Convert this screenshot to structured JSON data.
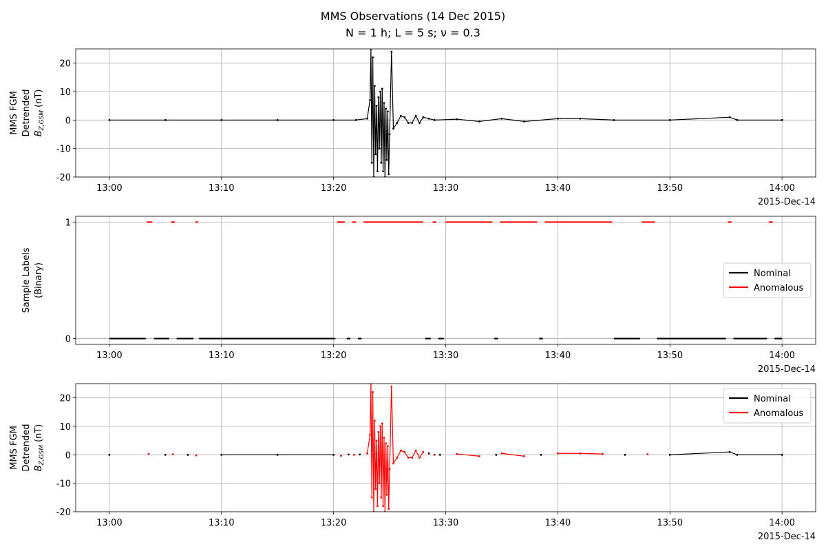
{
  "title": "MMS Observations (14 Dec 2015)",
  "subtitle": "N = 1 h; L = 5 s; ν = 0.3",
  "chart_data": [
    {
      "type": "line",
      "markers": true,
      "color": "#000000",
      "ylabel": [
        "MMS FGM",
        "Detrended"
      ],
      "ylabel_symbol": "B",
      "ylabel_subscript": "Z,GSM",
      "ylabel_unit": "(nT)",
      "x_offset_label": "2015-Dec-14",
      "x": [
        "13:00:00",
        "13:05:00",
        "13:10:00",
        "13:15:00",
        "13:20:00",
        "13:22:00",
        "13:23:00",
        "13:23:15",
        "13:23:20",
        "13:23:25",
        "13:23:30",
        "13:23:35",
        "13:23:40",
        "13:23:45",
        "13:23:50",
        "13:23:55",
        "13:24:00",
        "13:24:05",
        "13:24:10",
        "13:24:15",
        "13:24:20",
        "13:24:25",
        "13:24:30",
        "13:24:35",
        "13:24:40",
        "13:24:45",
        "13:24:50",
        "13:24:55",
        "13:25:00",
        "13:25:10",
        "13:25:20",
        "13:25:40",
        "13:26:00",
        "13:26:20",
        "13:26:40",
        "13:27:00",
        "13:27:20",
        "13:27:40",
        "13:28:00",
        "13:28:30",
        "13:29:00",
        "13:31:00",
        "13:33:00",
        "13:35:00",
        "13:37:00",
        "13:40:00",
        "13:42:00",
        "13:45:00",
        "13:50:00",
        "13:55:20",
        "13:56:00",
        "14:00:00"
      ],
      "values": [
        0,
        0,
        0,
        0,
        0,
        0,
        0.5,
        7,
        25,
        -15,
        22,
        -20,
        12,
        -12,
        5,
        -18,
        8,
        -10,
        10,
        -15,
        11,
        -18,
        6,
        -20,
        4,
        -14,
        3,
        -19,
        -5,
        24,
        -3,
        -1,
        1.5,
        1,
        -1,
        -1,
        1.5,
        -1,
        1,
        0.5,
        0,
        0.3,
        -0.5,
        0.5,
        -0.5,
        0.5,
        0.5,
        0,
        0,
        1,
        0,
        0
      ],
      "xlim": [
        "12:57:00",
        "14:03:00"
      ],
      "xticks": [
        {
          "value": "13:00:00",
          "label": "13:00"
        },
        {
          "value": "13:10:00",
          "label": "13:10"
        },
        {
          "value": "13:20:00",
          "label": "13:20"
        },
        {
          "value": "13:30:00",
          "label": "13:30"
        },
        {
          "value": "13:40:00",
          "label": "13:40"
        },
        {
          "value": "13:50:00",
          "label": "13:50"
        },
        {
          "value": "14:00:00",
          "label": "14:00"
        }
      ],
      "ylim": [
        -20,
        25
      ],
      "yticks": [
        -20,
        -10,
        0,
        10,
        20
      ],
      "grid": true
    },
    {
      "type": "line",
      "markers": false,
      "legend": "center right",
      "ylabel": [
        "Sample Labels",
        "(Binary)"
      ],
      "x_offset_label": "2015-Dec-14",
      "x": [
        "13:00:00",
        "13:03:15",
        "13:03:20",
        "13:03:50",
        "13:04:00",
        "13:05:20",
        "13:05:30",
        "13:05:50",
        "13:06:00",
        "13:07:30",
        "13:07:40",
        "13:07:55",
        "13:08:00",
        "13:20:10",
        "13:20:20",
        "13:21:00",
        "13:21:10",
        "13:21:30",
        "13:21:40",
        "13:22:00",
        "13:22:10",
        "13:22:30",
        "13:22:40",
        "13:28:00",
        "13:28:10",
        "13:28:40",
        "13:28:50",
        "13:29:10",
        "13:29:20",
        "13:29:50",
        "13:30:00",
        "13:34:10",
        "13:34:20",
        "13:34:40",
        "13:34:50",
        "13:38:10",
        "13:38:20",
        "13:38:40",
        "13:38:50",
        "13:44:50",
        "13:45:00",
        "13:47:20",
        "13:47:30",
        "13:48:40",
        "13:48:50",
        "13:55:00",
        "13:55:10",
        "13:55:30",
        "13:55:40",
        "13:58:40",
        "13:58:50",
        "13:59:10",
        "13:59:20",
        "14:00:00"
      ],
      "series": [
        {
          "name": "Nominal",
          "color": "#000000",
          "values": [
            0,
            0,
            null,
            null,
            0,
            0,
            null,
            null,
            0,
            0,
            null,
            null,
            0,
            0,
            null,
            null,
            0,
            0,
            null,
            null,
            0,
            0,
            null,
            null,
            0,
            0,
            null,
            null,
            0,
            0,
            null,
            null,
            0,
            0,
            null,
            null,
            0,
            0,
            null,
            null,
            0,
            0,
            null,
            null,
            0,
            0,
            null,
            null,
            0,
            0,
            null,
            null,
            0,
            0
          ]
        },
        {
          "name": "Anomalous",
          "color": "#ff0000",
          "values": [
            null,
            null,
            1,
            1,
            null,
            null,
            1,
            1,
            null,
            null,
            1,
            1,
            null,
            null,
            1,
            1,
            null,
            null,
            1,
            1,
            null,
            null,
            1,
            1,
            null,
            null,
            1,
            1,
            null,
            null,
            1,
            1,
            null,
            null,
            1,
            1,
            null,
            null,
            1,
            1,
            null,
            null,
            1,
            1,
            null,
            null,
            1,
            1,
            null,
            null,
            1,
            1,
            null,
            null
          ]
        }
      ],
      "xlim": [
        "12:57:00",
        "14:03:00"
      ],
      "xticks": [
        {
          "value": "13:00:00",
          "label": "13:00"
        },
        {
          "value": "13:10:00",
          "label": "13:10"
        },
        {
          "value": "13:20:00",
          "label": "13:20"
        },
        {
          "value": "13:30:00",
          "label": "13:30"
        },
        {
          "value": "13:40:00",
          "label": "13:40"
        },
        {
          "value": "13:50:00",
          "label": "13:50"
        },
        {
          "value": "14:00:00",
          "label": "14:00"
        }
      ],
      "ylim": [
        -0.05,
        1.05
      ],
      "yticks": [
        0,
        1
      ],
      "grid": true
    },
    {
      "type": "line",
      "markers": true,
      "legend": "upper right",
      "ylabel": [
        "MMS FGM",
        "Detrended"
      ],
      "ylabel_symbol": "B",
      "ylabel_subscript": "Z,GSM",
      "ylabel_unit": "(nT)",
      "x_offset_label": "2015-Dec-14",
      "x": [
        "13:00:00",
        "13:03:30",
        "13:05:00",
        "13:05:40",
        "13:07:00",
        "13:07:45",
        "13:10:00",
        "13:15:00",
        "13:20:00",
        "13:20:40",
        "13:21:20",
        "13:21:50",
        "13:22:20",
        "13:23:00",
        "13:23:15",
        "13:23:20",
        "13:23:25",
        "13:23:30",
        "13:23:35",
        "13:23:40",
        "13:23:45",
        "13:23:50",
        "13:23:55",
        "13:24:00",
        "13:24:05",
        "13:24:10",
        "13:24:15",
        "13:24:20",
        "13:24:25",
        "13:24:30",
        "13:24:35",
        "13:24:40",
        "13:24:45",
        "13:24:50",
        "13:24:55",
        "13:25:00",
        "13:25:10",
        "13:25:20",
        "13:25:40",
        "13:26:00",
        "13:26:20",
        "13:26:40",
        "13:27:00",
        "13:27:20",
        "13:27:40",
        "13:28:00",
        "13:28:30",
        "13:29:00",
        "13:29:30",
        "13:31:00",
        "13:33:00",
        "13:34:30",
        "13:35:00",
        "13:37:00",
        "13:38:30",
        "13:40:00",
        "13:42:00",
        "13:44:00",
        "13:46:00",
        "13:48:00",
        "13:50:00",
        "13:55:20",
        "13:56:00",
        "14:00:00"
      ],
      "series": [
        {
          "name": "Nominal",
          "color": "#000000",
          "values": [
            0,
            null,
            0,
            null,
            0,
            null,
            0,
            0,
            0,
            null,
            0.1,
            null,
            0.1,
            null,
            null,
            null,
            null,
            null,
            null,
            null,
            null,
            null,
            null,
            null,
            null,
            null,
            null,
            null,
            null,
            null,
            null,
            null,
            null,
            null,
            null,
            null,
            null,
            null,
            null,
            null,
            null,
            null,
            null,
            null,
            null,
            null,
            0.5,
            null,
            0,
            null,
            null,
            0,
            null,
            null,
            0,
            null,
            null,
            null,
            0,
            null,
            0,
            1,
            0,
            0
          ]
        },
        {
          "name": "Anomalous",
          "color": "#ff0000",
          "values": [
            null,
            0.3,
            null,
            0.2,
            null,
            -0.2,
            null,
            null,
            null,
            -0.3,
            null,
            0,
            null,
            0.5,
            7,
            25,
            -15,
            22,
            -20,
            12,
            -12,
            5,
            -18,
            8,
            -10,
            10,
            -15,
            11,
            -18,
            6,
            -20,
            4,
            -14,
            3,
            -19,
            -5,
            24,
            -3,
            -1,
            1.5,
            1,
            -1,
            -1,
            1.5,
            -1,
            1,
            null,
            0,
            null,
            0.3,
            -0.5,
            null,
            0.5,
            -0.5,
            null,
            0.5,
            0.5,
            0.3,
            null,
            0.2,
            null,
            null,
            null,
            null
          ]
        }
      ],
      "xlim": [
        "12:57:00",
        "14:03:00"
      ],
      "xticks": [
        {
          "value": "13:00:00",
          "label": "13:00"
        },
        {
          "value": "13:10:00",
          "label": "13:10"
        },
        {
          "value": "13:20:00",
          "label": "13:20"
        },
        {
          "value": "13:30:00",
          "label": "13:30"
        },
        {
          "value": "13:40:00",
          "label": "13:40"
        },
        {
          "value": "13:50:00",
          "label": "13:50"
        },
        {
          "value": "14:00:00",
          "label": "14:00"
        }
      ],
      "ylim": [
        -20,
        25
      ],
      "yticks": [
        -20,
        -10,
        0,
        10,
        20
      ],
      "grid": true
    }
  ]
}
